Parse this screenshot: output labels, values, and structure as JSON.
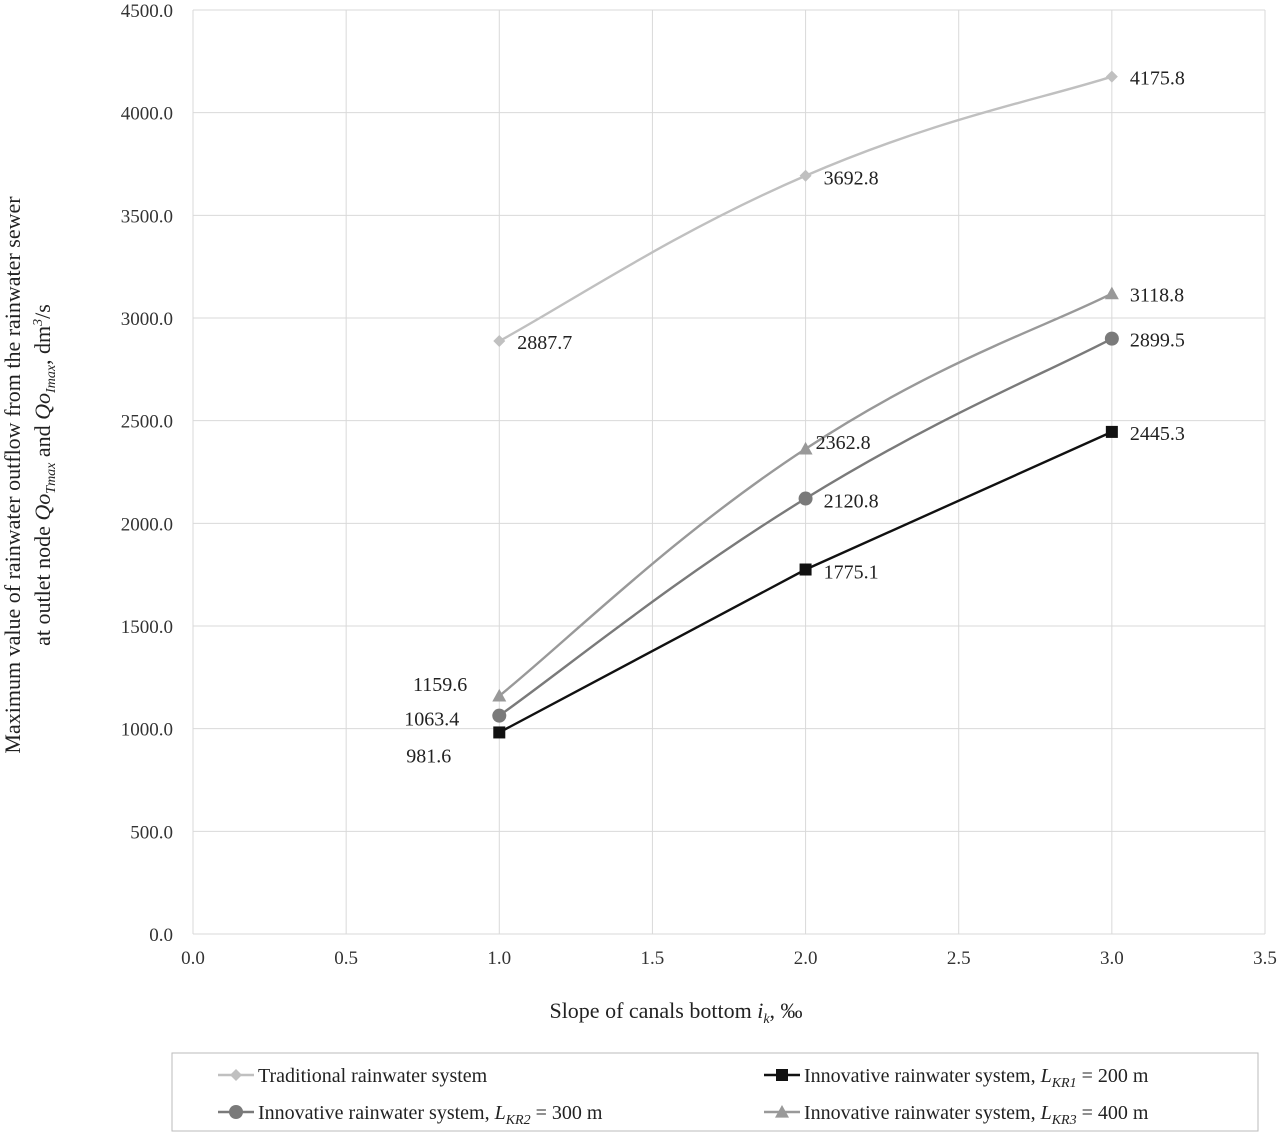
{
  "chart_data": {
    "type": "line",
    "x_axis": {
      "label_prefix": "Slope of canals bottom ",
      "label_var": "i",
      "label_sub": "k",
      "label_suffix": ", ‰",
      "range": [
        0,
        3.5
      ],
      "ticks": [
        "0.0",
        "0.5",
        "1.0",
        "1.5",
        "2.0",
        "2.5",
        "3.0",
        "3.5"
      ]
    },
    "y_axis": {
      "label_line1": "Maximum value of rainwater outflow from the rainwater sewer",
      "label_line2_a": "at outlet node ",
      "label_line2_var1": "Qo",
      "label_line2_sub1": "Tmax",
      "label_line2_b": " and ",
      "label_line2_var2": "Qo",
      "label_line2_sub2": "Imax",
      "label_line2_c": ", dm",
      "label_line2_sup": "3",
      "label_line2_d": "/s",
      "range": [
        0,
        4500
      ],
      "ticks": [
        "0.0",
        "500.0",
        "1000.0",
        "1500.0",
        "2000.0",
        "2500.0",
        "3000.0",
        "3500.0",
        "4000.0",
        "4500.0"
      ]
    },
    "grid": true,
    "legend_position": "bottom",
    "series": [
      {
        "name": "Traditional rainwater system",
        "legend_var": "",
        "legend_sub": "",
        "legend_suffix": "",
        "marker": "diamond",
        "color": "#c0c0c0",
        "x": [
          1.0,
          2.0,
          3.0
        ],
        "y": [
          2887.7,
          3692.8,
          4175.8
        ],
        "labels": [
          "2887.7",
          "3692.8",
          "4175.8"
        ]
      },
      {
        "name": "Innovative rainwater system, ",
        "legend_var": "L",
        "legend_sub": "KR1",
        "legend_suffix": " = 200 m",
        "marker": "square",
        "color": "#111111",
        "x": [
          1.0,
          2.0,
          3.0
        ],
        "y": [
          981.6,
          1775.1,
          2445.3
        ],
        "labels": [
          "981.6",
          "1775.1",
          "2445.3"
        ]
      },
      {
        "name": "Innovative rainwater system,  ",
        "legend_var": "L",
        "legend_sub": "KR2",
        "legend_suffix": " = 300 m",
        "marker": "circle",
        "color": "#7a7a7a",
        "x": [
          1.0,
          2.0,
          3.0
        ],
        "y": [
          1063.4,
          2120.8,
          2899.5
        ],
        "labels": [
          "1063.4",
          "2120.8",
          "2899.5"
        ]
      },
      {
        "name": "Innovative rainwater system, ",
        "legend_var": "L",
        "legend_sub": "KR3",
        "legend_suffix": " = 400 m",
        "marker": "triangle",
        "color": "#999999",
        "x": [
          1.0,
          2.0,
          3.0
        ],
        "y": [
          1159.6,
          2362.8,
          3118.8
        ],
        "labels": [
          "1159.6",
          "2362.8",
          "3118.8"
        ]
      }
    ]
  }
}
